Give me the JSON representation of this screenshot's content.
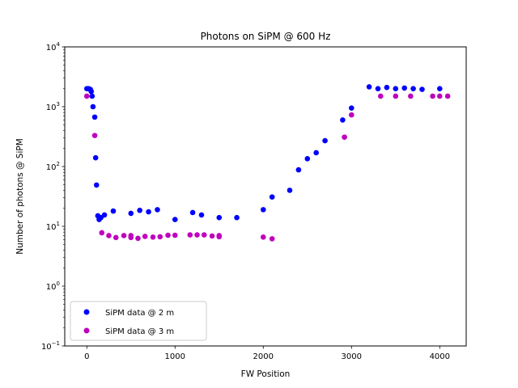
{
  "chart_data": {
    "type": "scatter",
    "title": "Photons on SiPM  @ 600 Hz",
    "xlabel": "FW Position",
    "ylabel": "Number of photons @ SiPM",
    "x_scale": "linear",
    "y_scale": "log",
    "xlim": [
      -250,
      4300
    ],
    "ylim": [
      0.1,
      10000
    ],
    "x_ticks": [
      0,
      1000,
      2000,
      3000,
      4000
    ],
    "x_tick_labels": [
      "0",
      "1000",
      "2000",
      "3000",
      "4000"
    ],
    "y_ticks": [
      0.1,
      1,
      10,
      100,
      1000,
      10000
    ],
    "y_tick_labels": [
      {
        "base": "10",
        "exp": "−1"
      },
      {
        "base": "10",
        "exp": "0"
      },
      {
        "base": "10",
        "exp": "1"
      },
      {
        "base": "10",
        "exp": "2"
      },
      {
        "base": "10",
        "exp": "3"
      },
      {
        "base": "10",
        "exp": "4"
      }
    ],
    "grid": false,
    "legend_position": "lower-left",
    "series": [
      {
        "name": "SiPM data @ 2 m",
        "color": "#0000ff",
        "points": [
          [
            0,
            2000
          ],
          [
            20,
            2000
          ],
          [
            40,
            1950
          ],
          [
            50,
            1800
          ],
          [
            60,
            1500
          ],
          [
            70,
            1000
          ],
          [
            90,
            670
          ],
          [
            100,
            140
          ],
          [
            110,
            49
          ],
          [
            125,
            15
          ],
          [
            140,
            13
          ],
          [
            160,
            14
          ],
          [
            200,
            15.5
          ],
          [
            300,
            18
          ],
          [
            500,
            16.5
          ],
          [
            600,
            18.5
          ],
          [
            700,
            17.5
          ],
          [
            800,
            19
          ],
          [
            1000,
            13
          ],
          [
            1200,
            17
          ],
          [
            1300,
            15.5
          ],
          [
            1500,
            14
          ],
          [
            1700,
            14
          ],
          [
            2000,
            19
          ],
          [
            2100,
            31
          ],
          [
            2300,
            40
          ],
          [
            2400,
            88
          ],
          [
            2500,
            135
          ],
          [
            2600,
            170
          ],
          [
            2700,
            270
          ],
          [
            2900,
            600
          ],
          [
            3000,
            950
          ],
          [
            3200,
            2150
          ],
          [
            3300,
            2000
          ],
          [
            3400,
            2100
          ],
          [
            3500,
            2000
          ],
          [
            3600,
            2050
          ],
          [
            3700,
            2000
          ],
          [
            3800,
            1950
          ],
          [
            4000,
            2000
          ]
        ]
      },
      {
        "name": "SiPM data @ 3 m",
        "color": "#bf00bf",
        "points": [
          [
            0,
            1500
          ],
          [
            90,
            330
          ],
          [
            170,
            7.8
          ],
          [
            250,
            7
          ],
          [
            330,
            6.5
          ],
          [
            420,
            7
          ],
          [
            500,
            6.5
          ],
          [
            500,
            7
          ],
          [
            580,
            6.3
          ],
          [
            660,
            6.8
          ],
          [
            750,
            6.6
          ],
          [
            830,
            6.7
          ],
          [
            920,
            7.1
          ],
          [
            1000,
            7.1
          ],
          [
            1170,
            7.2
          ],
          [
            1250,
            7.2
          ],
          [
            1330,
            7.2
          ],
          [
            1420,
            6.9
          ],
          [
            1500,
            6.7
          ],
          [
            1500,
            7
          ],
          [
            2000,
            6.6
          ],
          [
            2100,
            6.2
          ],
          [
            2920,
            310
          ],
          [
            3000,
            730
          ],
          [
            3330,
            1500
          ],
          [
            3500,
            1500
          ],
          [
            3670,
            1500
          ],
          [
            3920,
            1500
          ],
          [
            4000,
            1500
          ],
          [
            4090,
            1500
          ]
        ]
      }
    ]
  }
}
